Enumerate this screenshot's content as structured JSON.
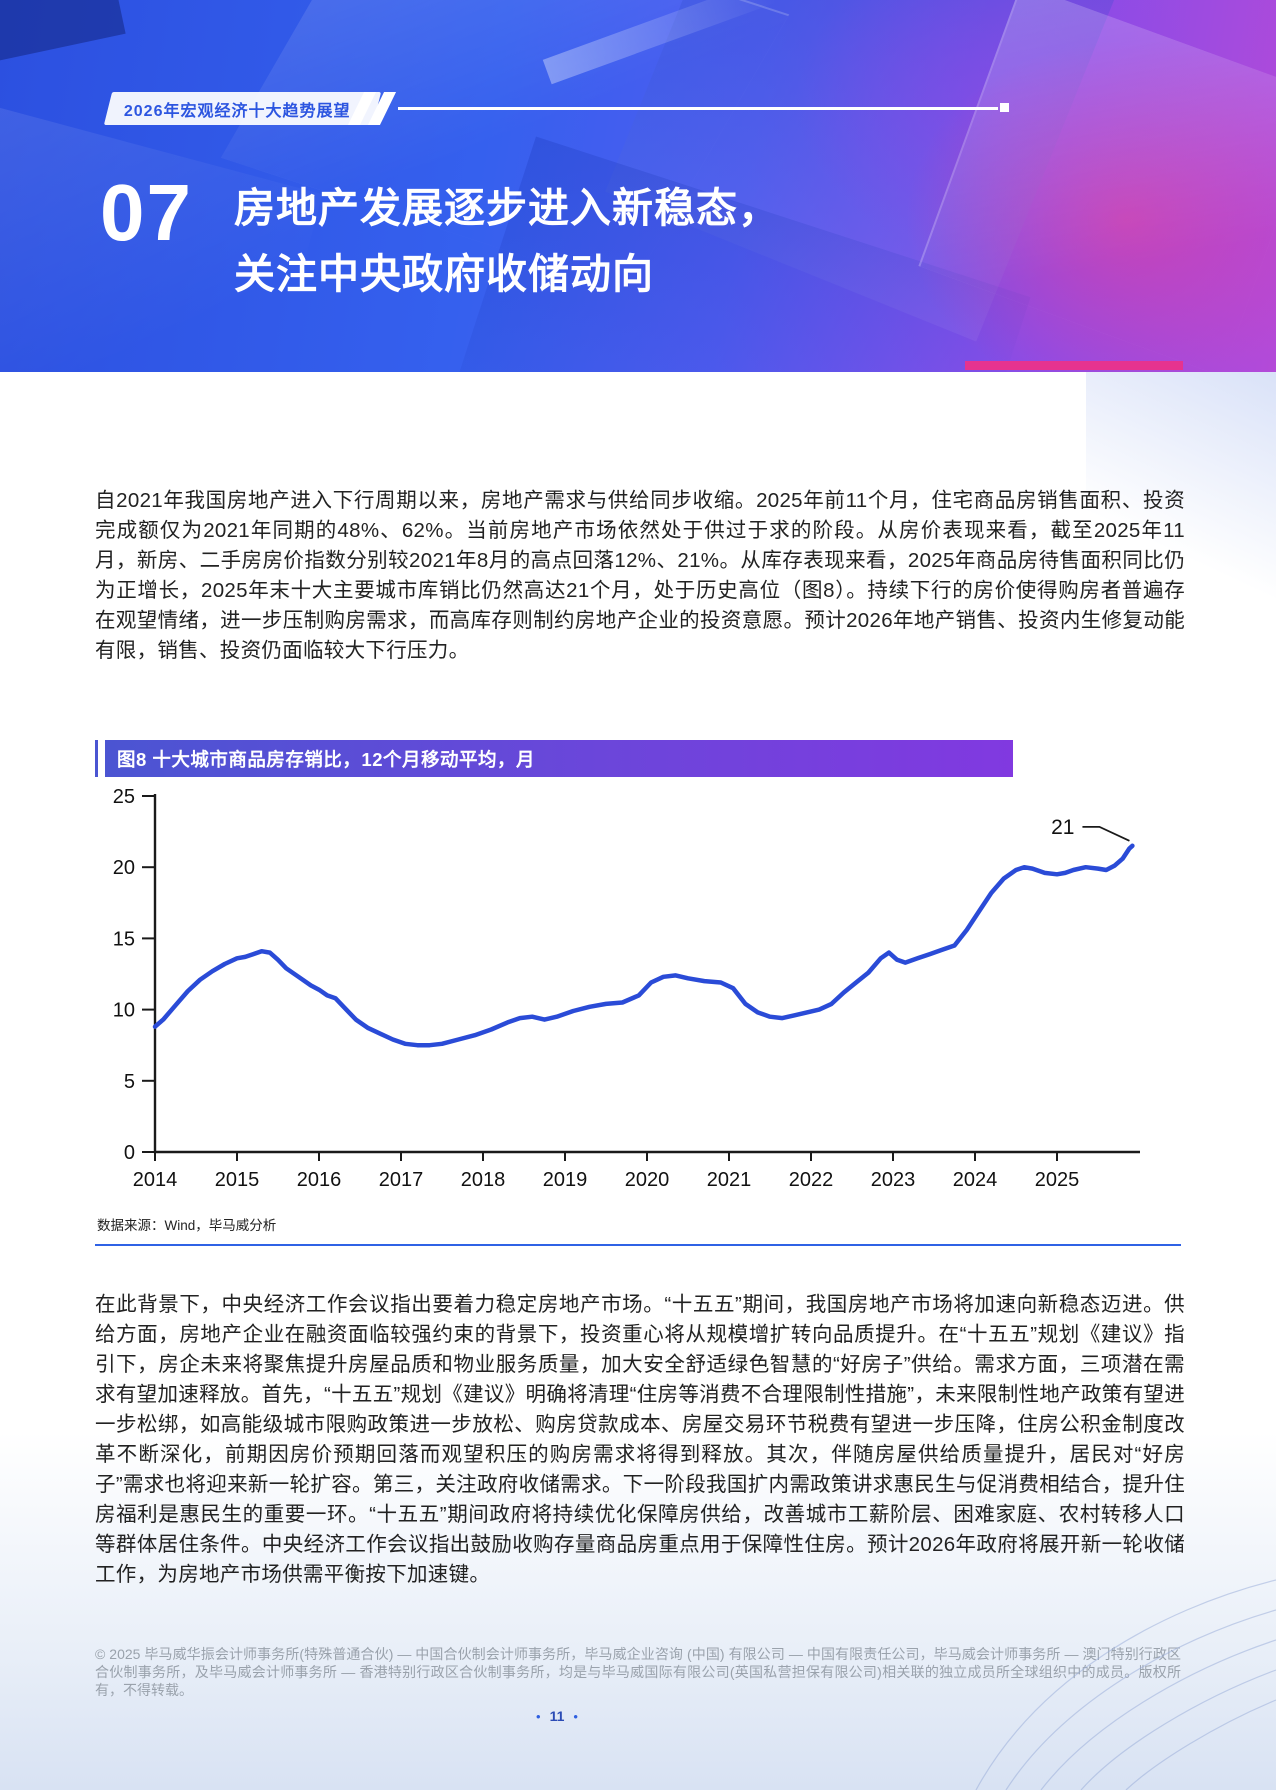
{
  "colors": {
    "banner_blue": "#2d55e6",
    "banner_purple": "#9a4ede",
    "accent_pink": "#e6338f",
    "figure_bar_left": "#4a55d2",
    "figure_bar_right": "#8139e0",
    "chart_line_blue": "#2a4bd7",
    "divider_blue": "#2f62e5",
    "badge_text_blue": "#2c55e0"
  },
  "banner": {
    "badge": "2026年宏观经济十大趋势展望",
    "section_number": "07",
    "title_line1": "房地产发展逐步进入新稳态，",
    "title_line2": "关注中央政府收储动向"
  },
  "body": {
    "paragraph1": "自2021年我国房地产进入下行周期以来，房地产需求与供给同步收缩。2025年前11个月，住宅商品房销售面积、投资完成额仅为2021年同期的48%、62%。当前房地产市场依然处于供过于求的阶段。从房价表现来看，截至2025年11月，新房、二手房房价指数分别较2021年8月的高点回落12%、21%。从库存表现来看，2025年商品房待售面积同比仍为正增长，2025年末十大主要城市库销比仍然高达21个月，处于历史高位（图8）。持续下行的房价使得购房者普遍存在观望情绪，进一步压制购房需求，而高库存则制约房地产企业的投资意愿。预计2026年地产销售、投资内生修复动能有限，销售、投资仍面临较大下行压力。",
    "paragraph2": "在此背景下，中央经济工作会议指出要着力稳定房地产市场。“十五五”期间，我国房地产市场将加速向新稳态迈进。供给方面，房地产企业在融资面临较强约束的背景下，投资重心将从规模增扩转向品质提升。在“十五五”规划《建议》指引下，房企未来将聚焦提升房屋品质和物业服务质量，加大安全舒适绿色智慧的“好房子”供给。需求方面，三项潜在需求有望加速释放。首先，“十五五”规划《建议》明确将清理“住房等消费不合理限制性措施”，未来限制性地产政策有望进一步松绑，如高能级城市限购政策进一步放松、购房贷款成本、房屋交易环节税费有望进一步压降，住房公积金制度改革不断深化，前期因房价预期回落而观望积压的购房需求将得到释放。其次，伴随房屋供给质量提升，居民对“好房子”需求也将迎来新一轮扩容。第三，关注政府收储需求。下一阶段我国扩内需政策讲求惠民生与促消费相结合，提升住房福利是惠民生的重要一环。“十五五”期间政府将持续优化保障房供给，改善城市工薪阶层、困难家庭、农村转移人口等群体居住条件。中央经济工作会议指出鼓励收购存量商品房重点用于保障性住房。预计2026年政府将展开新一轮收储工作，为房地产市场供需平衡按下加速键。"
  },
  "figure": {
    "title": "图8 十大城市商品房存销比，12个月移动平均，月",
    "source": "数据来源：Wind，毕马威分析"
  },
  "chart_data": {
    "type": "line",
    "title": "图8 十大城市商品房存销比，12个月移动平均，月",
    "xlabel": "",
    "ylabel": "",
    "unit": "月",
    "x_ticks": [
      2014,
      2015,
      2016,
      2017,
      2018,
      2019,
      2020,
      2021,
      2022,
      2023,
      2024,
      2025
    ],
    "y_ticks": [
      0,
      5,
      10,
      15,
      20,
      25
    ],
    "ylim": [
      0,
      25
    ],
    "grid": false,
    "legend": "none",
    "line_color": "#2a4bd7",
    "annotation": {
      "text": "21",
      "x": 2025.92,
      "y": 21.5
    },
    "series": [
      {
        "name": "十大城市商品房存销比（12个月移动平均，月）",
        "x": [
          2014.0,
          2014.1,
          2014.25,
          2014.4,
          2014.55,
          2014.7,
          2014.85,
          2015.0,
          2015.1,
          2015.2,
          2015.3,
          2015.4,
          2015.5,
          2015.6,
          2015.75,
          2015.9,
          2016.0,
          2016.1,
          2016.2,
          2016.3,
          2016.45,
          2016.6,
          2016.75,
          2016.9,
          2017.05,
          2017.2,
          2017.35,
          2017.5,
          2017.7,
          2017.9,
          2018.1,
          2018.3,
          2018.45,
          2018.6,
          2018.75,
          2018.9,
          2019.1,
          2019.3,
          2019.5,
          2019.7,
          2019.9,
          2020.05,
          2020.2,
          2020.35,
          2020.5,
          2020.7,
          2020.9,
          2021.05,
          2021.2,
          2021.35,
          2021.5,
          2021.65,
          2021.8,
          2021.95,
          2022.1,
          2022.25,
          2022.4,
          2022.55,
          2022.7,
          2022.85,
          2022.95,
          2023.05,
          2023.15,
          2023.3,
          2023.45,
          2023.6,
          2023.75,
          2023.9,
          2024.05,
          2024.2,
          2024.35,
          2024.5,
          2024.6,
          2024.7,
          2024.85,
          2025.0,
          2025.1,
          2025.2,
          2025.35,
          2025.5,
          2025.6,
          2025.7,
          2025.8,
          2025.88,
          2025.92
        ],
        "y": [
          8.8,
          9.3,
          10.3,
          11.3,
          12.1,
          12.7,
          13.2,
          13.6,
          13.7,
          13.9,
          14.1,
          14.0,
          13.5,
          12.9,
          12.3,
          11.7,
          11.4,
          11.0,
          10.8,
          10.2,
          9.3,
          8.7,
          8.3,
          7.9,
          7.6,
          7.5,
          7.5,
          7.6,
          7.9,
          8.2,
          8.6,
          9.1,
          9.4,
          9.5,
          9.3,
          9.5,
          9.9,
          10.2,
          10.4,
          10.5,
          11.0,
          11.9,
          12.3,
          12.4,
          12.2,
          12.0,
          11.9,
          11.5,
          10.4,
          9.8,
          9.5,
          9.4,
          9.6,
          9.8,
          10.0,
          10.4,
          11.2,
          11.9,
          12.6,
          13.6,
          14.0,
          13.5,
          13.3,
          13.6,
          13.9,
          14.2,
          14.5,
          15.6,
          16.9,
          18.2,
          19.2,
          19.8,
          20.0,
          19.9,
          19.6,
          19.5,
          19.6,
          19.8,
          20.0,
          19.9,
          19.8,
          20.1,
          20.6,
          21.3,
          21.5
        ]
      }
    ],
    "source": "数据来源：Wind，毕马威分析"
  },
  "footer": {
    "copyright": "© 2025 毕马威华振会计师事务所(特殊普通合伙) — 中国合伙制会计师事务所，毕马威企业咨询 (中国) 有限公司 — 中国有限责任公司，毕马威会计师事务所 — 澳门特别行政区合伙制事务所，及毕马威会计师事务所 — 香港特别行政区合伙制事务所，均是与毕马威国际有限公司(英国私营担保有限公司)相关联的独立成员所全球组织中的成员。版权所有，不得转载。",
    "page_number": "11",
    "pager_dot": "•"
  }
}
